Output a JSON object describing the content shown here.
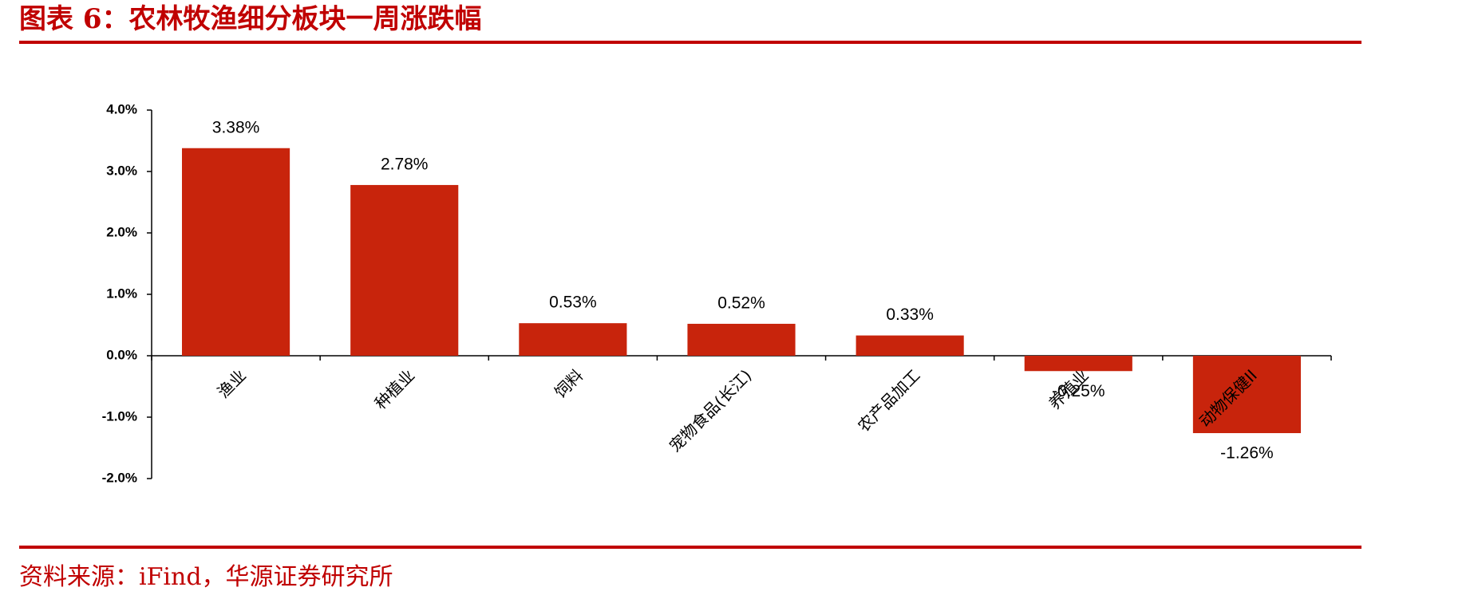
{
  "chart_data": {
    "type": "bar",
    "title": "图表 6：农林牧渔细分板块一周涨跌幅",
    "categories": [
      "渔业",
      "种植业",
      "饲料",
      "宠物食品(长江)",
      "农产品加工",
      "养殖业",
      "动物保健II"
    ],
    "values": [
      3.38,
      2.78,
      0.53,
      0.52,
      0.33,
      -0.25,
      -1.26
    ],
    "value_labels": [
      "3.38%",
      "2.78%",
      "0.53%",
      "0.52%",
      "0.33%",
      "-0.25%",
      "-1.26%"
    ],
    "color": "#c8240c",
    "ylim": [
      -2,
      4
    ],
    "yticks": [
      {
        "value": -2,
        "label": "-2.0%"
      },
      {
        "value": -1,
        "label": "-1.0%"
      },
      {
        "value": 0,
        "label": "0.0%"
      },
      {
        "value": 1,
        "label": "1.0%"
      },
      {
        "value": 2,
        "label": "2.0%"
      },
      {
        "value": 3,
        "label": "3.0%"
      },
      {
        "value": 4,
        "label": "4.0%"
      }
    ]
  },
  "source": "资料来源：iFind，华源证券研究所"
}
